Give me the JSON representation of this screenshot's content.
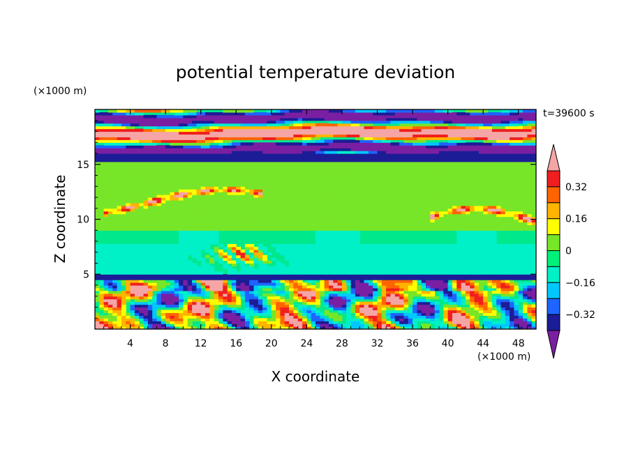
{
  "chart_data": {
    "type": "heatmap",
    "title": "potential temperature deviation",
    "xlabel": "X coordinate",
    "ylabel": "Z coordinate",
    "x_unit": "(×1000 m)",
    "y_unit": "(×1000 m)",
    "time_label": "t=39600 s",
    "xlim": [
      0,
      50
    ],
    "ylim": [
      0,
      20
    ],
    "x_ticks": [
      4,
      8,
      12,
      16,
      20,
      24,
      28,
      32,
      36,
      40,
      44,
      48
    ],
    "x_tick_labels": [
      "4",
      "8",
      "12",
      "16",
      "20",
      "24",
      "28",
      "32",
      "36",
      "40",
      "44",
      "48"
    ],
    "y_ticks": [
      5,
      10,
      15
    ],
    "y_tick_labels": [
      "5",
      "10",
      "15"
    ],
    "colorbar": {
      "levels": [
        -0.4,
        -0.32,
        -0.24,
        -0.16,
        -0.08,
        0,
        0.08,
        0.16,
        0.24,
        0.32,
        0.4
      ],
      "tick_values": [
        0.32,
        0.16,
        0,
        -0.16,
        -0.32
      ],
      "tick_labels": [
        "0.32",
        "0.16",
        "0",
        "−0.16",
        "−0.32"
      ],
      "colors": [
        "#7a1fa2",
        "#1c1c96",
        "#1e64ff",
        "#00c8ff",
        "#00f0c8",
        "#00f07a",
        "#78e628",
        "#ffff00",
        "#ffb400",
        "#ff6400",
        "#f01e1e",
        "#f5a5a5"
      ],
      "extend": "both"
    },
    "regions": [
      {
        "z_range": [
          0,
          4.6
        ],
        "description": "surface layer with strong mixed positive and negative cells"
      },
      {
        "z_range": [
          4.6,
          5.0
        ],
        "value": -0.35
      },
      {
        "z_range": [
          5.0,
          7.8
        ],
        "value": -0.12
      },
      {
        "z_range": [
          7.8,
          9.0
        ],
        "value": -0.05
      },
      {
        "z_range": [
          9.0,
          15.2
        ],
        "value": 0.02
      },
      {
        "z_range": [
          15.2,
          16.0
        ],
        "value": -0.35
      },
      {
        "z_range": [
          16.0,
          20.0
        ],
        "description": "alternating bands of large positive and negative deviation"
      }
    ]
  }
}
